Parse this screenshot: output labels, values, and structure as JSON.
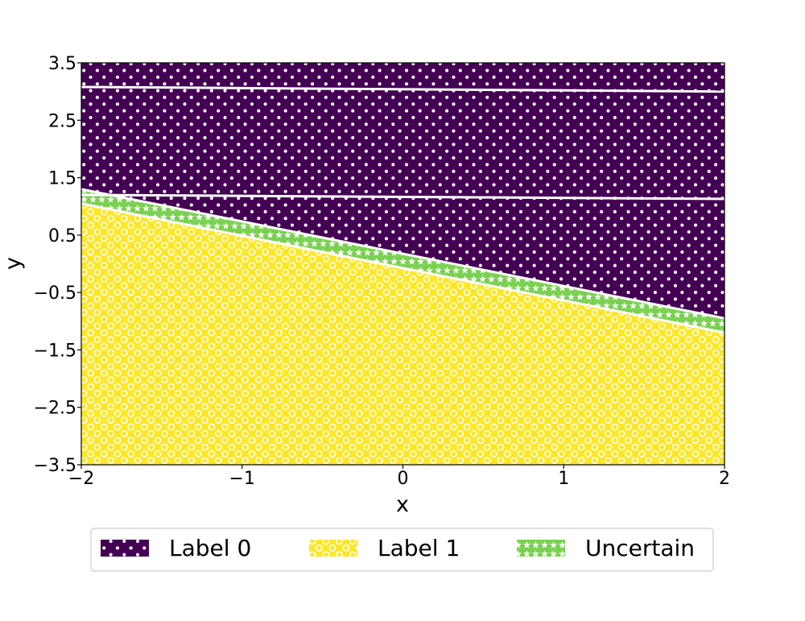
{
  "chart_data": {
    "type": "area",
    "title": "",
    "xlabel": "x",
    "ylabel": "y",
    "xlim": [
      -2,
      2
    ],
    "ylim": [
      -3.5,
      3.5
    ],
    "x_ticks": [
      {
        "value": -2,
        "label": "−2"
      },
      {
        "value": -1,
        "label": "−1"
      },
      {
        "value": 0,
        "label": "0"
      },
      {
        "value": 1,
        "label": "1"
      },
      {
        "value": 2,
        "label": "2"
      }
    ],
    "y_ticks": [
      {
        "value": 3.5,
        "label": "3.5"
      },
      {
        "value": 2.5,
        "label": "2.5"
      },
      {
        "value": 1.5,
        "label": "1.5"
      },
      {
        "value": 0.5,
        "label": "0.5"
      },
      {
        "value": -0.5,
        "label": "−0.5"
      },
      {
        "value": -1.5,
        "label": "−1.5"
      },
      {
        "value": -2.5,
        "label": "−2.5"
      },
      {
        "value": -3.5,
        "label": "−3.5"
      }
    ],
    "boundaries": [
      {
        "name": "uncertain-upper",
        "x": [
          -2,
          2
        ],
        "y": [
          1.3,
          -0.95
        ]
      },
      {
        "name": "uncertain-lower",
        "x": [
          -2,
          2
        ],
        "y": [
          1.05,
          -1.2
        ]
      }
    ],
    "contour_lines": [
      {
        "x": [
          -2,
          2
        ],
        "y": [
          3.08,
          3.0
        ]
      },
      {
        "x": [
          -2,
          2
        ],
        "y": [
          1.2,
          1.13
        ]
      }
    ],
    "series": [
      {
        "name": "Label 0",
        "color": "#440154",
        "hatch": "dots"
      },
      {
        "name": "Label 1",
        "color": "#fde725",
        "hatch": "rings"
      },
      {
        "name": "Uncertain",
        "color": "#7ad151",
        "hatch": "stars"
      }
    ],
    "legend": {
      "position": "bottom-center",
      "columns": 3
    }
  }
}
